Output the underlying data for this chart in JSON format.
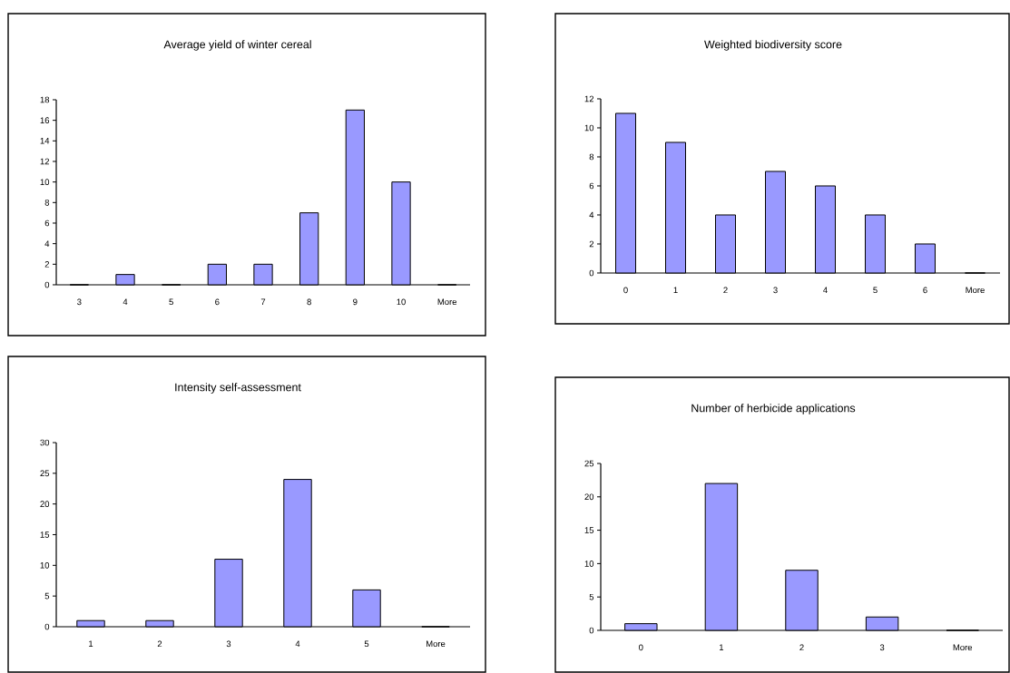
{
  "chart_data": [
    {
      "type": "bar",
      "title": "Average yield of winter cereal",
      "categories": [
        "3",
        "4",
        "5",
        "6",
        "7",
        "8",
        "9",
        "10",
        "More"
      ],
      "values": [
        0,
        1,
        0,
        2,
        2,
        7,
        17,
        10,
        0
      ],
      "color": "#9999ff",
      "ylim": [
        0,
        18
      ],
      "yticks": [
        0,
        2,
        4,
        6,
        8,
        10,
        12,
        14,
        16,
        18
      ]
    },
    {
      "type": "bar",
      "title": "Weighted biodiversity score",
      "categories": [
        "0",
        "1",
        "2",
        "3",
        "4",
        "5",
        "6",
        "More"
      ],
      "values": [
        11,
        9,
        4,
        7,
        6,
        4,
        2,
        0
      ],
      "color": "#9999ff",
      "ylim": [
        0,
        12
      ],
      "yticks": [
        0,
        2,
        4,
        6,
        8,
        10,
        12
      ]
    },
    {
      "type": "bar",
      "title": "Intensity self-assessment",
      "categories": [
        "1",
        "2",
        "3",
        "4",
        "5",
        "More"
      ],
      "values": [
        1,
        1,
        11,
        24,
        6,
        0
      ],
      "color": "#9999ff",
      "ylim": [
        0,
        30
      ],
      "yticks": [
        0,
        5,
        10,
        15,
        20,
        25,
        30
      ]
    },
    {
      "type": "bar",
      "title": "Number of herbicide applications",
      "categories": [
        "0",
        "1",
        "2",
        "3",
        "More"
      ],
      "values": [
        1,
        22,
        9,
        2,
        0
      ],
      "color": "#9999ff",
      "ylim": [
        0,
        25
      ],
      "yticks": [
        0,
        5,
        10,
        15,
        20,
        25
      ]
    }
  ]
}
